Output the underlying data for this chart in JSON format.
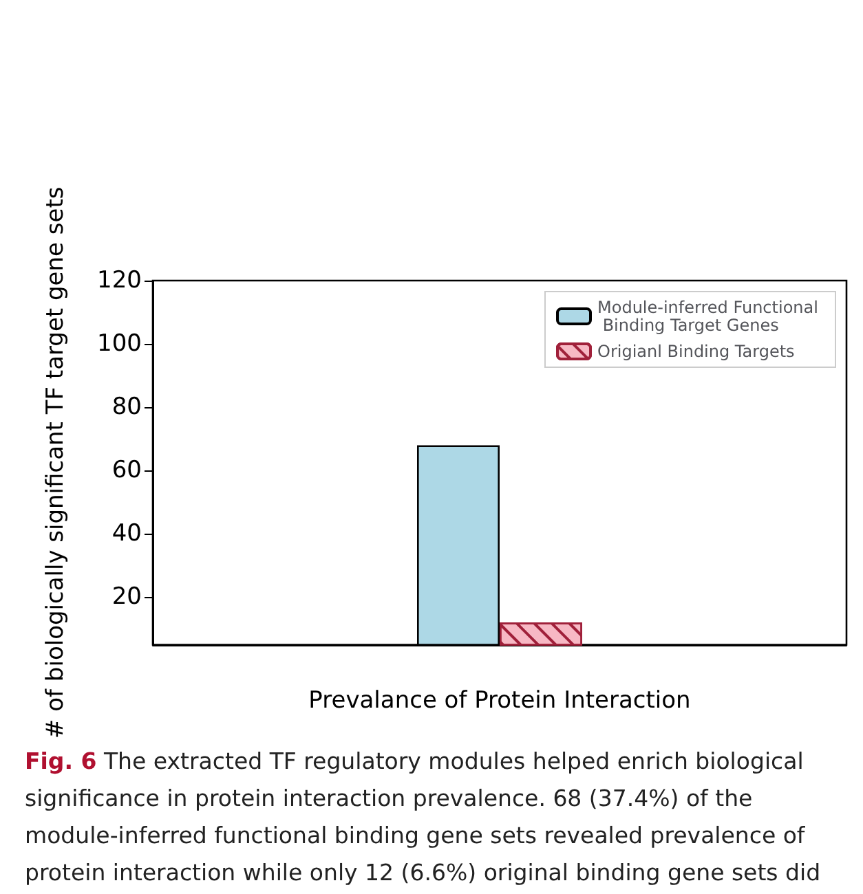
{
  "chart_data": {
    "type": "bar",
    "xlabel": "Prevalance of Protein Interaction",
    "ylabel": "# of biologically significant TF target gene sets",
    "categories": [
      null
    ],
    "series": [
      {
        "name": "Module-inferred Functional Binding Target Genes",
        "color": "#add8e6",
        "values": [
          68
        ]
      },
      {
        "name": "Origianl Binding Targets",
        "color": "#f7b8c4",
        "values": [
          12
        ]
      }
    ],
    "ylim": [
      5,
      120
    ],
    "yticks": [
      20,
      40,
      60,
      80,
      100,
      120
    ],
    "grid": false,
    "legend": "top right",
    "tick_labels": "y",
    "annotations": [
      "Fig. 6",
      "The extracted TF regulatory modules helped enrich biological significance in protein interaction prevalence. 68 (37.4%) of the module-inferred functional binding gene sets revealed prevalence of protein interaction while only 12 (6.6%) original binding gene sets did"
    ]
  }
}
